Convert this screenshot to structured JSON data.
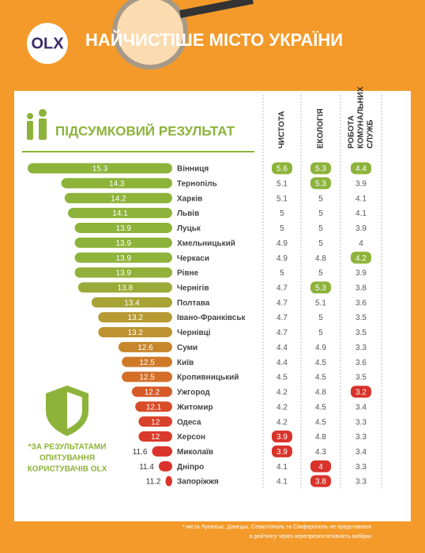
{
  "logo": "OLX",
  "header": {
    "title": "НАЙЧИСТІШЕ МІСТО УКРАЇНИ"
  },
  "side_note": [
    "*ЗА РЕЗУЛЬТАТАМИ",
    "ОПИТУВАННЯ",
    "КОРИСТУВАЧІВ OLX"
  ],
  "footnote": [
    "* міста Луганськ, Донецьк, Севастополь та Сімферополь не представлені",
    "в рейтингу через нерепрезентативність вибірки"
  ],
  "chart_data": {
    "type": "bar",
    "title": "ПІДСУМКОВИЙ РЕЗУЛЬТАТ",
    "categories": [
      "Вінниця",
      "Тернопіль",
      "Харків",
      "Львів",
      "Луцьк",
      "Хмельницький",
      "Черкаси",
      "Рівне",
      "Чернігів",
      "Полтава",
      "Івано-Франківськ",
      "Чернівці",
      "Суми",
      "Київ",
      "Кропивницький",
      "Ужгород",
      "Житомир",
      "Одеса",
      "Херсон",
      "Миколаїв",
      "Дніпро",
      "Запоріжжя"
    ],
    "values": [
      15.3,
      14.3,
      14.2,
      14.1,
      13.9,
      13.9,
      13.9,
      13.9,
      13.8,
      13.4,
      13.2,
      13.2,
      12.6,
      12.5,
      12.5,
      12.2,
      12.1,
      12,
      12,
      11.6,
      11.4,
      11.2
    ],
    "colors": [
      "#8db33a",
      "#8db33a",
      "#8db33a",
      "#8db33a",
      "#8db33a",
      "#8db33a",
      "#8db33a",
      "#93b03a",
      "#9aaa38",
      "#a8a336",
      "#b79a33",
      "#bf9330",
      "#c8862c",
      "#cf7a29",
      "#d36e27",
      "#d65a27",
      "#d84c28",
      "#d9412a",
      "#da3a2b",
      "#d9332b",
      "#d9332b",
      "#d9332b"
    ],
    "xlim": [
      11,
      15.3
    ],
    "series": [
      {
        "name": [
          "ЧИСТОТА"
        ],
        "values": [
          5.6,
          5.1,
          5.1,
          5,
          5,
          4.9,
          4.9,
          5,
          4.7,
          4.7,
          4.7,
          4.7,
          4.4,
          4.4,
          4.5,
          4.2,
          4.2,
          4.2,
          3.9,
          3.9,
          4.1,
          4.1
        ],
        "badges": [
          "#8db33a",
          null,
          null,
          null,
          null,
          null,
          null,
          null,
          null,
          null,
          null,
          null,
          null,
          null,
          null,
          null,
          null,
          null,
          "#d9332b",
          "#d9332b",
          null,
          null
        ]
      },
      {
        "name": [
          "ЕКОЛОГІЯ"
        ],
        "values": [
          5.3,
          5.3,
          5,
          5,
          5,
          5,
          4.8,
          5,
          5.3,
          5.1,
          5,
          5,
          4.9,
          4.5,
          4.5,
          4.8,
          4.5,
          4.5,
          4.8,
          4.3,
          4,
          3.8
        ],
        "badges": [
          "#8db33a",
          "#8db33a",
          null,
          null,
          null,
          null,
          null,
          null,
          "#8db33a",
          null,
          null,
          null,
          null,
          null,
          null,
          null,
          null,
          null,
          null,
          null,
          "#d9332b",
          "#d9332b"
        ]
      },
      {
        "name": [
          "РОБОТА",
          "КОМУНАЛЬНИХ",
          "СЛУЖБ"
        ],
        "values": [
          4.4,
          3.9,
          4.1,
          4.1,
          3.9,
          4,
          4.2,
          3.9,
          3.8,
          3.6,
          3.5,
          3.5,
          3.3,
          3.6,
          3.5,
          3.2,
          3.4,
          3.3,
          3.3,
          3.4,
          3.3,
          3.3
        ],
        "badges": [
          "#8db33a",
          null,
          null,
          null,
          null,
          null,
          "#8db33a",
          null,
          null,
          null,
          null,
          null,
          null,
          null,
          null,
          "#d9332b",
          null,
          null,
          null,
          null,
          null,
          null
        ]
      }
    ]
  }
}
